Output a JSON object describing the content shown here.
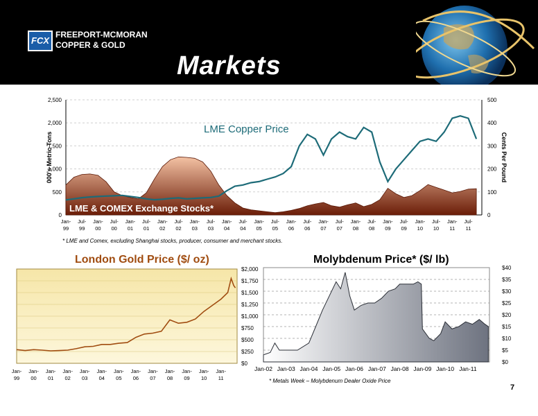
{
  "header": {
    "company_line1": "FREEPORT-MCMORAN",
    "company_line2": "COPPER & GOLD",
    "logo_mark": "FCX",
    "title": "Markets"
  },
  "footnote_copper": "* LME and Comex, excluding Shanghai stocks, producer, consumer and merchant stocks.",
  "footnote_moly": "* Metals Week – Molybdenum Dealer Oxide Price",
  "page_number": "7",
  "chart_data": [
    {
      "type": "area",
      "title": "",
      "ylabel": "000's Metric Tons",
      "y2label": "Cents Per Pound",
      "ylim": [
        0,
        2500
      ],
      "y2lim": [
        0,
        500
      ],
      "yticks": [
        "0",
        "500",
        "1,000",
        "1,500",
        "2,000",
        "2,500"
      ],
      "y2ticks": [
        "0",
        "100",
        "200",
        "300",
        "400",
        "500"
      ],
      "grid": true,
      "xticks": [
        [
          "Jan-",
          "99"
        ],
        [
          "Jul-",
          "99"
        ],
        [
          "Jan-",
          "00"
        ],
        [
          "Jul-",
          "00"
        ],
        [
          "Jan-",
          "01"
        ],
        [
          "Jul-",
          "01"
        ],
        [
          "Jan-",
          "02"
        ],
        [
          "Jul-",
          "02"
        ],
        [
          "Jan-",
          "03"
        ],
        [
          "Jul-",
          "03"
        ],
        [
          "Jan-",
          "04"
        ],
        [
          "Jul-",
          "04"
        ],
        [
          "Jan-",
          "05"
        ],
        [
          "Jul-",
          "05"
        ],
        [
          "Jan-",
          "06"
        ],
        [
          "Jul-",
          "06"
        ],
        [
          "Jan-",
          "07"
        ],
        [
          "Jul-",
          "07"
        ],
        [
          "Jan-",
          "08"
        ],
        [
          "Jul-",
          "08"
        ],
        [
          "Jan-",
          "09"
        ],
        [
          "Jul-",
          "09"
        ],
        [
          "Jan-",
          "10"
        ],
        [
          "Jul-",
          "10"
        ],
        [
          "Jan-",
          "11"
        ],
        [
          "Jul-",
          "11"
        ]
      ],
      "series": [
        {
          "name": "LME & COMEX Exchange Stocks*",
          "axis": "left",
          "color": "#8a2a0a",
          "x": [
            1999.0,
            1999.25,
            1999.5,
            1999.75,
            2000.0,
            2000.25,
            2000.5,
            2000.75,
            2001.0,
            2001.25,
            2001.5,
            2001.75,
            2002.0,
            2002.25,
            2002.5,
            2002.75,
            2003.0,
            2003.25,
            2003.5,
            2003.75,
            2004.0,
            2004.25,
            2004.5,
            2004.75,
            2005.0,
            2005.25,
            2005.5,
            2005.75,
            2006.0,
            2006.25,
            2006.5,
            2006.75,
            2007.0,
            2007.25,
            2007.5,
            2007.75,
            2008.0,
            2008.25,
            2008.5,
            2008.75,
            2009.0,
            2009.25,
            2009.5,
            2009.75,
            2010.0,
            2010.25,
            2010.5,
            2010.75,
            2011.0,
            2011.25,
            2011.5,
            2011.75
          ],
          "values": [
            650,
            820,
            880,
            890,
            860,
            720,
            500,
            420,
            380,
            350,
            480,
            780,
            1050,
            1200,
            1260,
            1250,
            1230,
            1150,
            950,
            650,
            420,
            260,
            150,
            110,
            90,
            70,
            50,
            70,
            100,
            140,
            200,
            240,
            270,
            200,
            170,
            220,
            260,
            180,
            230,
            330,
            580,
            460,
            380,
            420,
            530,
            660,
            600,
            540,
            480,
            510,
            560,
            570
          ]
        },
        {
          "name": "LME Copper Price",
          "axis": "right",
          "color": "#1d6b78",
          "x": [
            1999.0,
            1999.25,
            1999.5,
            1999.75,
            2000.0,
            2000.25,
            2000.5,
            2000.75,
            2001.0,
            2001.25,
            2001.5,
            2001.75,
            2002.0,
            2002.25,
            2002.5,
            2002.75,
            2003.0,
            2003.25,
            2003.5,
            2003.75,
            2004.0,
            2004.25,
            2004.5,
            2004.75,
            2005.0,
            2005.25,
            2005.5,
            2005.75,
            2006.0,
            2006.25,
            2006.5,
            2006.75,
            2007.0,
            2007.25,
            2007.5,
            2007.75,
            2008.0,
            2008.25,
            2008.5,
            2008.75,
            2009.0,
            2009.25,
            2009.5,
            2009.75,
            2010.0,
            2010.25,
            2010.5,
            2010.75,
            2011.0,
            2011.25,
            2011.5,
            2011.75
          ],
          "values": [
            65,
            70,
            75,
            78,
            80,
            82,
            83,
            85,
            80,
            76,
            70,
            66,
            68,
            72,
            74,
            70,
            72,
            74,
            76,
            82,
            105,
            125,
            130,
            140,
            145,
            155,
            165,
            180,
            210,
            300,
            350,
            330,
            260,
            330,
            360,
            340,
            330,
            380,
            360,
            230,
            145,
            200,
            240,
            280,
            320,
            330,
            320,
            360,
            420,
            430,
            420,
            330
          ]
        }
      ]
    },
    {
      "type": "line",
      "title": "London Gold Price ($/ oz)",
      "ylim": [
        0,
        2000
      ],
      "yticks": [
        "$0",
        "$250",
        "$500",
        "$750",
        "$1,000",
        "$1,250",
        "$1,500",
        "$1,750",
        "$2,000"
      ],
      "xticks": [
        [
          "Jan-",
          "99"
        ],
        [
          "Jan-",
          "00"
        ],
        [
          "Jan-",
          "01"
        ],
        [
          "Jan-",
          "02"
        ],
        [
          "Jan-",
          "03"
        ],
        [
          "Jan-",
          "04"
        ],
        [
          "Jan-",
          "05"
        ],
        [
          "Jan-",
          "06"
        ],
        [
          "Jan-",
          "07"
        ],
        [
          "Jan-",
          "08"
        ],
        [
          "Jan-",
          "09"
        ],
        [
          "Jan-",
          "10"
        ],
        [
          "Jan-",
          "11"
        ]
      ],
      "series": [
        {
          "name": "",
          "color": "#a04c10",
          "x": [
            1999.0,
            1999.5,
            2000.0,
            2000.5,
            2001.0,
            2001.5,
            2002.0,
            2002.5,
            2003.0,
            2003.5,
            2004.0,
            2004.5,
            2005.0,
            2005.5,
            2006.0,
            2006.5,
            2007.0,
            2007.5,
            2008.0,
            2008.5,
            2009.0,
            2009.5,
            2010.0,
            2010.5,
            2011.0,
            2011.4,
            2011.6,
            2011.75,
            2011.85
          ],
          "values": [
            290,
            270,
            290,
            280,
            265,
            270,
            280,
            310,
            350,
            360,
            400,
            400,
            425,
            440,
            550,
            620,
            640,
            680,
            920,
            850,
            870,
            940,
            1100,
            1230,
            1360,
            1500,
            1800,
            1650,
            1600
          ]
        }
      ]
    },
    {
      "type": "area",
      "title": "Molybdenum Price*  ($/ lb)",
      "ylim": [
        0,
        40
      ],
      "yticks": [
        "$0",
        "$5",
        "$10",
        "$15",
        "$20",
        "$25",
        "$30",
        "$35",
        "$40"
      ],
      "xticks": [
        "Jan-02",
        "Jan-03",
        "Jan-04",
        "Jan-05",
        "Jan-06",
        "Jan-07",
        "Jan-08",
        "Jan-09",
        "Jan-10",
        "Jan-11"
      ],
      "series": [
        {
          "name": "",
          "color": "#8a8f99",
          "x": [
            2002.0,
            2002.3,
            2002.5,
            2002.7,
            2003.0,
            2003.5,
            2004.0,
            2004.3,
            2004.6,
            2004.9,
            2005.2,
            2005.4,
            2005.6,
            2005.8,
            2006.0,
            2006.3,
            2006.6,
            2006.9,
            2007.2,
            2007.5,
            2007.8,
            2008.0,
            2008.3,
            2008.6,
            2008.8,
            2008.95,
            2009.0,
            2009.3,
            2009.5,
            2009.8,
            2010.0,
            2010.3,
            2010.6,
            2010.9,
            2011.2,
            2011.5,
            2011.75,
            2011.9
          ],
          "values": [
            3,
            4,
            8,
            5,
            5,
            5,
            8,
            15,
            22,
            28,
            34,
            31,
            38,
            28,
            22,
            24,
            25,
            25,
            27,
            30,
            31,
            33,
            33,
            33,
            34,
            33,
            14,
            10,
            9,
            12,
            17,
            14,
            15,
            17,
            16,
            18,
            16,
            15
          ]
        }
      ]
    }
  ]
}
